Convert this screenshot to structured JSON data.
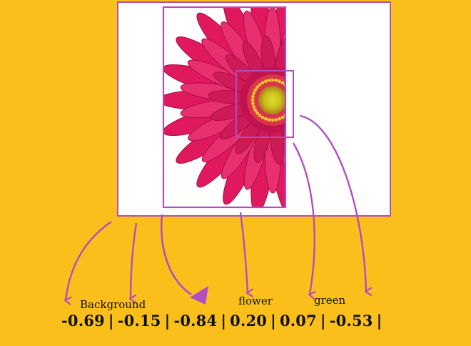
{
  "labels": {
    "background": "Background",
    "flower": "flower",
    "green": "green"
  },
  "values": [
    "-0.69",
    "-0.15",
    "-0.84",
    "0.20",
    "0.07",
    "-0.53"
  ],
  "separator": "|",
  "colors": {
    "background": "#fbbf1b",
    "frame": "#b24fb4",
    "arrow": "#b04fc0",
    "petal": "#e0195f",
    "petal_dark": "#a80d44",
    "center": "#d4d21b",
    "text": "#111111"
  },
  "icons": {
    "arrows": "curved-down-arrow",
    "flower": "gerbera-daisy"
  }
}
